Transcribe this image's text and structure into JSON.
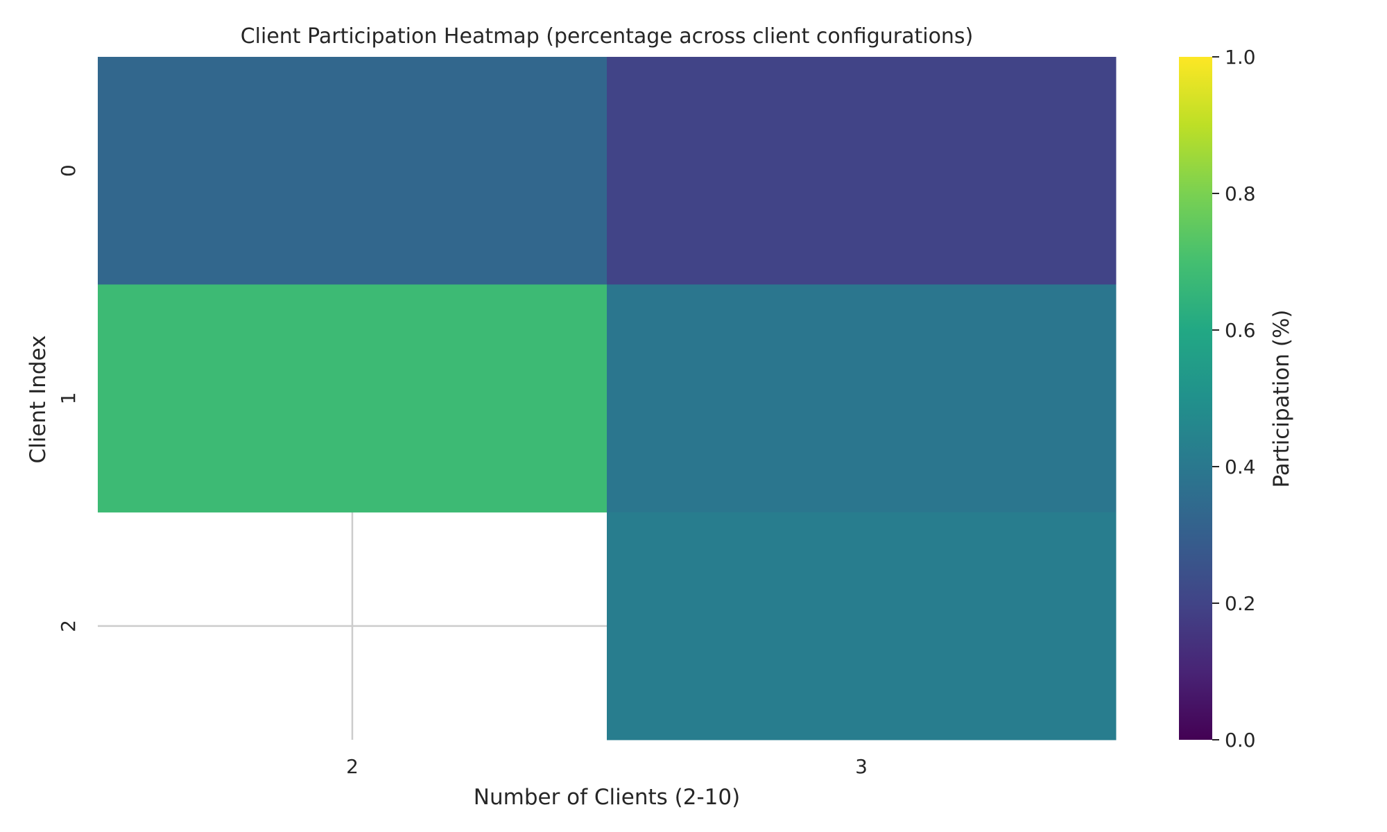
{
  "chart_data": {
    "type": "heatmap",
    "title": "Client Participation Heatmap (percentage across client configurations)",
    "xlabel": "Number of Clients (2-10)",
    "ylabel": "Client Index",
    "x_categories": [
      "2",
      "3"
    ],
    "y_categories": [
      "0",
      "1",
      "2"
    ],
    "values": [
      [
        0.33,
        0.2
      ],
      [
        0.68,
        0.39
      ],
      [
        null,
        0.42
      ]
    ],
    "colorbar": {
      "label": "Participation (%)",
      "colormap": "viridis",
      "range": [
        0.0,
        1.0
      ],
      "ticks": [
        "0.0",
        "0.2",
        "0.4",
        "0.6",
        "0.8",
        "1.0"
      ]
    },
    "grid": true,
    "grid_color": "#cccccc"
  }
}
